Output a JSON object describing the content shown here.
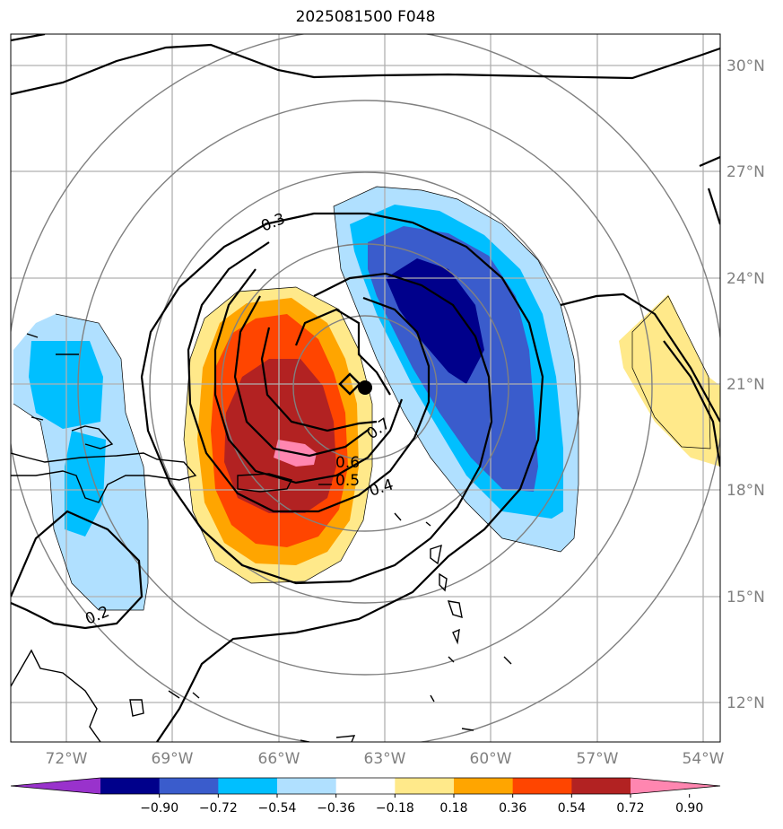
{
  "title": "2025081500 F048",
  "map": {
    "lon_ticks": [
      "72°W",
      "69°W",
      "66°W",
      "63°W",
      "60°W",
      "57°W",
      "54°W"
    ],
    "lat_ticks": [
      "30°N",
      "27°N",
      "24°N",
      "21°N",
      "18°N",
      "15°N",
      "12°N"
    ],
    "contour_labels": [
      "0.3",
      "0.7",
      "0.6",
      "0.5",
      "0.4",
      "0.2"
    ],
    "markers": [
      "diamond",
      "filled-circle"
    ]
  },
  "colorbar": {
    "ticks": [
      "−0.90",
      "−0.72",
      "−0.54",
      "−0.36",
      "−0.18",
      "0.18",
      "0.36",
      "0.54",
      "0.72",
      "0.90"
    ],
    "colors": [
      "#9932cc",
      "#00008b",
      "#3a5ccc",
      "#00bfff",
      "#b0e0ff",
      "#ffffff",
      "#ffe98a",
      "#ffa500",
      "#ff4500",
      "#b22222",
      "#ff86b0"
    ]
  }
}
